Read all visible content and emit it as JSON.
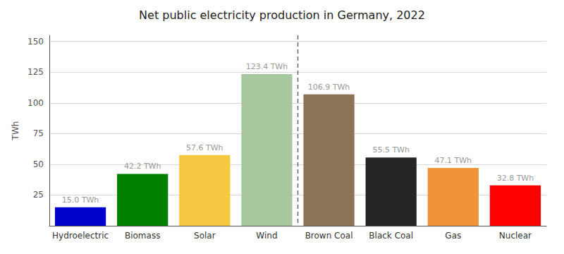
{
  "chart_data": {
    "type": "bar",
    "title": "Net public electricity production in Germany, 2022",
    "categories": [
      "Hydroelectric",
      "Biomass",
      "Solar",
      "Wind",
      "Brown Coal",
      "Black Coal",
      "Gas",
      "Nuclear"
    ],
    "values": [
      15.0,
      42.2,
      57.6,
      123.4,
      106.9,
      55.5,
      47.1,
      32.8
    ],
    "value_labels": [
      "15.0 TWh",
      "42.2 TWh",
      "57.6 TWh",
      "123.4 TWh",
      "106.9 TWh",
      "55.5 TWh",
      "47.1 TWh",
      "32.8 TWh"
    ],
    "colors": [
      "#0000CC",
      "#008000",
      "#F5C842",
      "#A8C8A0",
      "#8B7355",
      "#252525",
      "#F0943A",
      "#FF0000"
    ],
    "ylabel": "TWh",
    "ylim": [
      0,
      155
    ],
    "yticks": [
      25,
      50,
      75,
      100,
      125,
      150
    ],
    "grid": true,
    "data_labels": true
  }
}
